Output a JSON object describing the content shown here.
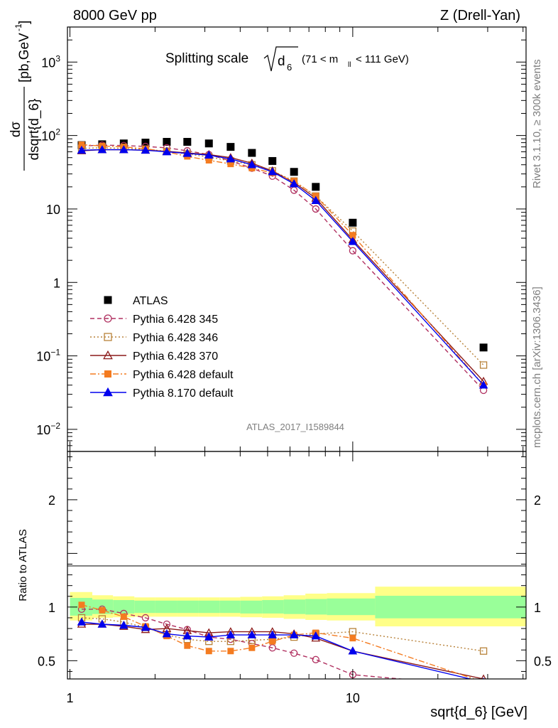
{
  "header": {
    "left": "8000 GeV pp",
    "right": "Z (Drell-Yan)"
  },
  "plot_title": {
    "main": "Splitting scale",
    "sqrt_var": "d",
    "sqrt_sub": "6",
    "cut": "(71 < m",
    "cut_sub": "ll",
    "cut_end": "< 111 GeV)"
  },
  "ylabel_top": {
    "num": "dσ",
    "den": "dsqrt{d_6}",
    "unit": "[pb,GeV",
    "unit_exp": "-1",
    "unit_end": "]"
  },
  "ylabel_ratio": "Ratio to ATLAS",
  "xlabel": "sqrt{d_6} [GeV]",
  "side_text_top": "Rivet 3.1.10, ≥ 300k events",
  "side_text_bottom": "mcplots.cern.ch [arXiv:1306.3436]",
  "watermark": "ATLAS_2017_I1589844",
  "top_ticks": [
    {
      "v": 1000,
      "b": "10",
      "e": "3"
    },
    {
      "v": 100,
      "b": "10",
      "e": "2"
    },
    {
      "v": 10,
      "b": "10",
      "e": ""
    },
    {
      "v": 1,
      "b": "1",
      "e": ""
    },
    {
      "v": 0.1,
      "b": "10",
      "e": "−1"
    },
    {
      "v": 0.01,
      "b": "10",
      "e": "−2"
    }
  ],
  "ratio_ticks": [
    {
      "v": 2,
      "t": "2"
    },
    {
      "v": 1,
      "t": "1"
    },
    {
      "v": 0.5,
      "t": "0.5"
    }
  ],
  "x_ticks": [
    {
      "v": 1,
      "t": "1"
    },
    {
      "v": 10,
      "t": "10"
    }
  ],
  "chart_data": {
    "type": "line",
    "xscale": "log",
    "yscale": "log",
    "xlim": [
      0.98,
      41
    ],
    "ylim": [
      0.005,
      3000
    ],
    "ratio_ylim": [
      0.33,
      2.45
    ],
    "legend_position": "lower-left",
    "x": [
      1.1,
      1.3,
      1.55,
      1.85,
      2.2,
      2.6,
      3.1,
      3.7,
      4.4,
      5.2,
      6.2,
      7.4,
      10.0,
      29.0
    ],
    "bands": {
      "x_edges": [
        1.0,
        1.2,
        1.42,
        1.69,
        2.0,
        2.4,
        2.84,
        3.38,
        4.0,
        4.78,
        5.7,
        6.8,
        8.1,
        12.0,
        42.0
      ],
      "outer": [
        [
          0.875,
          1.14
        ],
        [
          0.9,
          1.11
        ],
        [
          0.905,
          1.1
        ],
        [
          0.91,
          1.09
        ],
        [
          0.91,
          1.09
        ],
        [
          0.91,
          1.09
        ],
        [
          0.91,
          1.09
        ],
        [
          0.91,
          1.09
        ],
        [
          0.905,
          1.095
        ],
        [
          0.9,
          1.1
        ],
        [
          0.89,
          1.11
        ],
        [
          0.88,
          1.125
        ],
        [
          0.875,
          1.13
        ],
        [
          0.82,
          1.19
        ]
      ],
      "inner": [
        [
          0.92,
          1.085
        ],
        [
          0.935,
          1.07
        ],
        [
          0.94,
          1.065
        ],
        [
          0.945,
          1.06
        ],
        [
          0.945,
          1.06
        ],
        [
          0.945,
          1.06
        ],
        [
          0.945,
          1.06
        ],
        [
          0.945,
          1.06
        ],
        [
          0.94,
          1.06
        ],
        [
          0.94,
          1.065
        ],
        [
          0.935,
          1.07
        ],
        [
          0.93,
          1.075
        ],
        [
          0.925,
          1.08
        ],
        [
          0.895,
          1.105
        ]
      ]
    },
    "series": [
      {
        "name": "ATLAS",
        "color": "#000000",
        "marker": "square",
        "dash": "none",
        "values": [
          74,
          76,
          78,
          80,
          82,
          82,
          78,
          70,
          58,
          45,
          32,
          20,
          6.5,
          0.13
        ],
        "ratio": null
      },
      {
        "name": "Pythia 6.428 345",
        "color": "#b03060",
        "marker": "open-circle",
        "dash": "6,4",
        "values": [
          72,
          74,
          73,
          71,
          68,
          62,
          55,
          45,
          36,
          28,
          18,
          10,
          2.7,
          0.034
        ],
        "ratio": [
          0.98,
          0.98,
          0.94,
          0.9,
          0.84,
          0.79,
          0.72,
          0.7,
          0.66,
          0.62,
          0.57,
          0.51,
          0.37,
          0.26
        ]
      },
      {
        "name": "Pythia 6.428 346",
        "color": "#b8823a",
        "marker": "open-square",
        "dash": "2,3",
        "values": [
          67,
          68,
          67,
          65,
          61,
          56,
          51,
          45,
          40,
          33,
          24,
          15,
          5.0,
          0.075
        ],
        "ratio": [
          0.9,
          0.89,
          0.86,
          0.81,
          0.74,
          0.7,
          0.68,
          0.68,
          0.69,
          0.7,
          0.72,
          0.75,
          0.77,
          0.59
        ]
      },
      {
        "name": "Pythia 6.428 370",
        "color": "#8b1a1a",
        "marker": "open-triangle",
        "dash": "none",
        "values": [
          62,
          64,
          64,
          63,
          61,
          58,
          55,
          50,
          42,
          33,
          23,
          14,
          3.8,
          0.045
        ],
        "ratio": [
          0.84,
          0.84,
          0.82,
          0.79,
          0.8,
          0.78,
          0.76,
          0.77,
          0.77,
          0.77,
          0.75,
          0.71,
          0.59,
          0.33
        ]
      },
      {
        "name": "Pythia 6.428 default",
        "color": "#f47b20",
        "marker": "filled-square",
        "dash": "8,3,2,3",
        "values": [
          75,
          72,
          70,
          66,
          60,
          52,
          46,
          41,
          36,
          31,
          24,
          15,
          4.4,
          0.04
        ],
        "ratio": [
          1.02,
          0.97,
          0.91,
          0.82,
          0.73,
          0.64,
          0.59,
          0.59,
          0.62,
          0.68,
          0.74,
          0.76,
          0.71,
          0.3
        ]
      },
      {
        "name": "Pythia 8.170 default",
        "color": "#0000ee",
        "marker": "filled-triangle",
        "dash": "none",
        "values": [
          63,
          64,
          64,
          63,
          60,
          57,
          54,
          48,
          40,
          32,
          22,
          13,
          3.6,
          0.04
        ],
        "ratio": [
          0.86,
          0.84,
          0.83,
          0.81,
          0.75,
          0.73,
          0.72,
          0.74,
          0.74,
          0.74,
          0.74,
          0.73,
          0.59,
          0.3
        ]
      }
    ]
  }
}
